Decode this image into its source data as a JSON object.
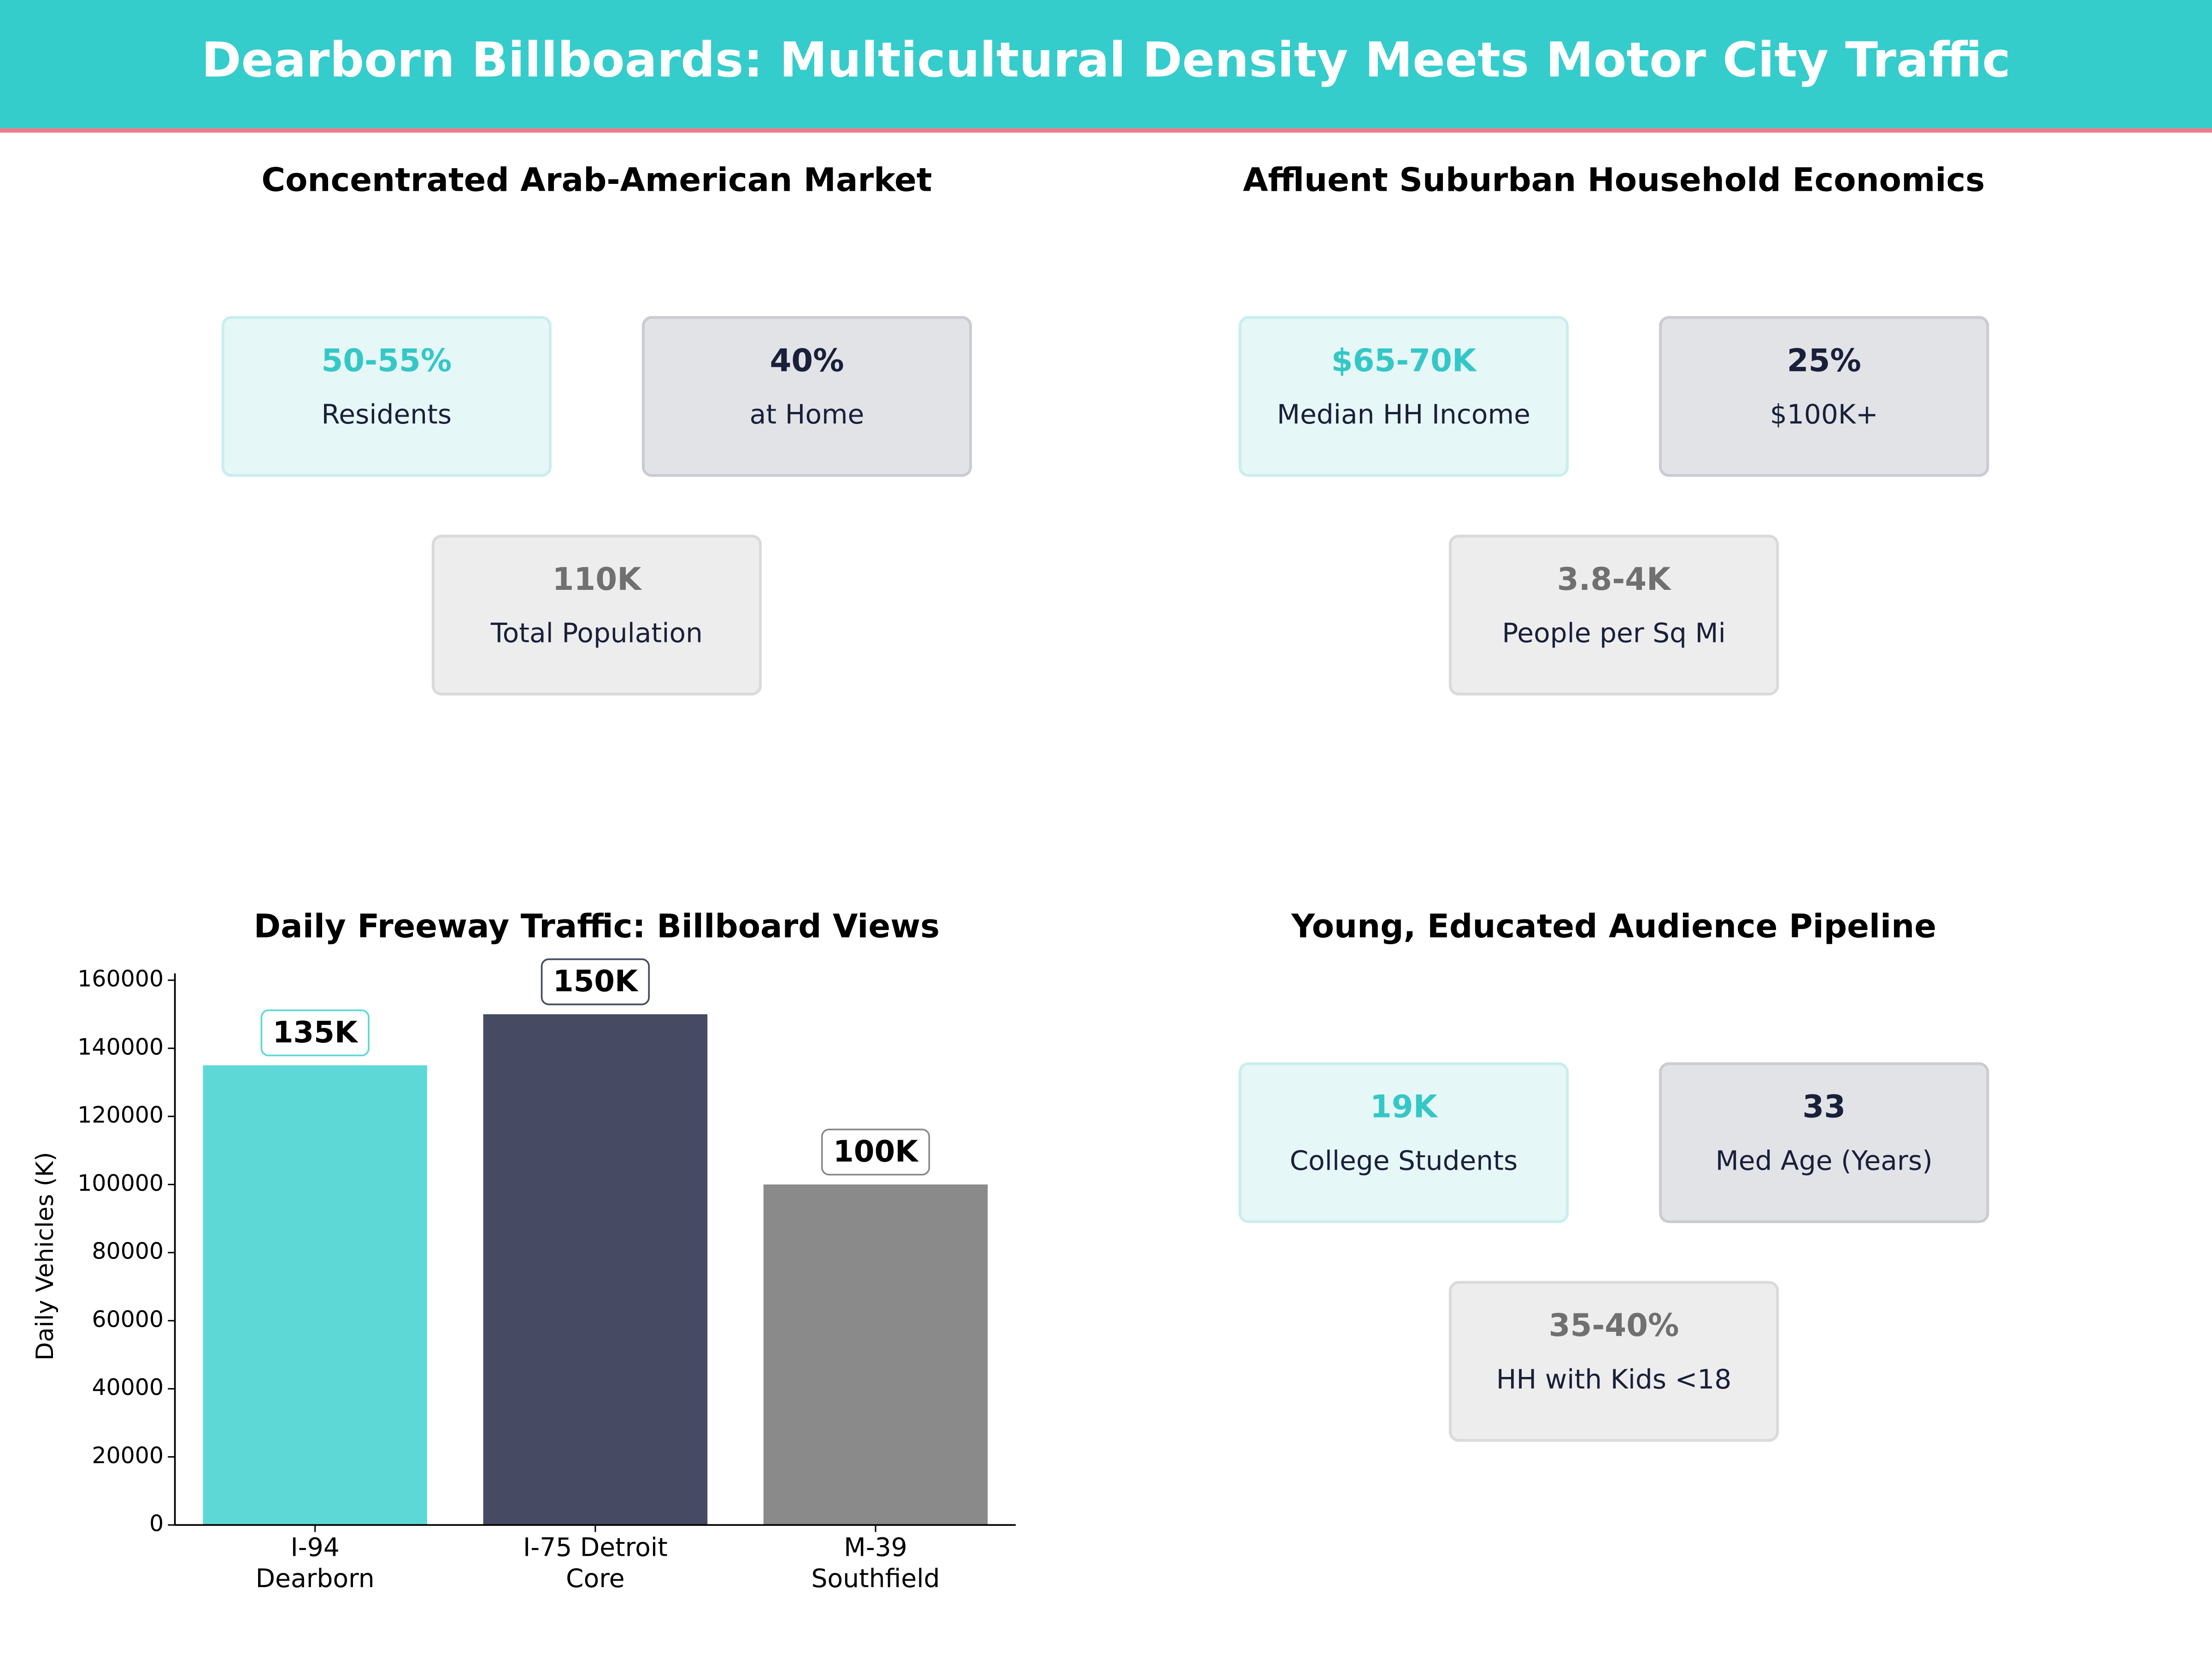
{
  "header": {
    "title": "Dearborn Billboards: Multicultural Density Meets Motor City Traffic"
  },
  "panels": [
    {
      "title": "Concentrated Arab-American Market",
      "cards": [
        {
          "value": "50-55%",
          "label": "Residents"
        },
        {
          "value": "40%",
          "label": "at Home"
        },
        {
          "value": "110K",
          "label": "Total Population"
        }
      ]
    },
    {
      "title": "Affluent Suburban Household Economics",
      "cards": [
        {
          "value": "$65-70K",
          "label": "Median HH Income"
        },
        {
          "value": "25%",
          "label": "$100K+"
        },
        {
          "value": "3.8-4K",
          "label": "People per Sq Mi"
        }
      ]
    },
    {
      "title": "Young, Educated Audience Pipeline",
      "cards": [
        {
          "value": "19K",
          "label": "College Students"
        },
        {
          "value": "33",
          "label": "Med Age (Years)"
        },
        {
          "value": "35-40%",
          "label": "HH with Kids <18"
        }
      ]
    }
  ],
  "chart_data": {
    "type": "bar",
    "title": "Daily Freeway Traffic: Billboard Views",
    "y_label": "Daily Vehicles (K)",
    "categories": [
      "I-94\nDearborn",
      "I-75 Detroit\nCore",
      "M-39\nSouthfield"
    ],
    "values": [
      135000,
      150000,
      100000
    ],
    "value_labels": [
      "135K",
      "150K",
      "100K"
    ],
    "colors": [
      "#5ed8d6",
      "#464b63",
      "#8a8a8a"
    ],
    "ylim": [
      0,
      162000
    ],
    "yticks": [
      0,
      20000,
      40000,
      60000,
      80000,
      100000,
      120000,
      140000,
      160000
    ]
  }
}
